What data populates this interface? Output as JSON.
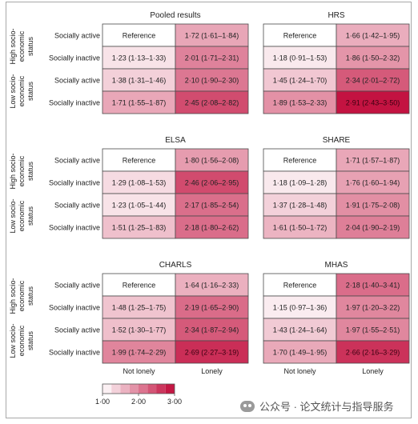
{
  "chart_data": {
    "type": "heatmap",
    "columns": [
      "Not lonely",
      "Lonely"
    ],
    "rows": [
      "Socially active",
      "Socially inactive",
      "Socially active",
      "Socially inactive"
    ],
    "row_groups": [
      "High socio-economic status",
      "Low socio-economic status"
    ],
    "row_group_lines": [
      [
        "High socio-",
        "economic",
        "status"
      ],
      [
        "Low socio-",
        "economic",
        "status"
      ]
    ],
    "colorbar": {
      "ticks": [
        "1·00",
        "2·00",
        "3·00"
      ],
      "min": 1.0,
      "max": 3.0,
      "low_color": "#ffffff",
      "high_color": "#c00838"
    },
    "panels": [
      {
        "title": "Pooled results",
        "cells": [
          [
            null,
            1.72
          ],
          [
            1.23,
            2.01
          ],
          [
            1.38,
            2.1
          ],
          [
            1.71,
            2.45
          ]
        ],
        "labels": [
          [
            "Reference",
            "1·72 (1·61–1·84)"
          ],
          [
            "1·23 (1·13–1·33)",
            "2·01 (1·71–2·31)"
          ],
          [
            "1·38 (1·31–1·46)",
            "2·10 (1·90–2·30)"
          ],
          [
            "1·71 (1·55–1·87)",
            "2·45 (2·08–2·82)"
          ]
        ]
      },
      {
        "title": "HRS",
        "cells": [
          [
            null,
            1.66
          ],
          [
            1.18,
            1.86
          ],
          [
            1.45,
            2.34
          ],
          [
            1.89,
            2.91
          ]
        ],
        "labels": [
          [
            "Reference",
            "1·66 (1·42–1·95)"
          ],
          [
            "1·18 (0·91–1·53)",
            "1·86 (1·50–2·32)"
          ],
          [
            "1·45 (1·24–1·70)",
            "2·34 (2·01–2·72)"
          ],
          [
            "1·89 (1·53–2·33)",
            "2·91 (2·43–3·50)"
          ]
        ]
      },
      {
        "title": "ELSA",
        "cells": [
          [
            null,
            1.8
          ],
          [
            1.29,
            2.46
          ],
          [
            1.23,
            2.17
          ],
          [
            1.51,
            2.18
          ]
        ],
        "labels": [
          [
            "Reference",
            "1·80 (1·56–2·08)"
          ],
          [
            "1·29 (1·08–1·53)",
            "2·46 (2·06–2·95)"
          ],
          [
            "1·23 (1·05–1·44)",
            "2·17 (1·85–2·54)"
          ],
          [
            "1·51 (1·25–1·83)",
            "2·18 (1·80–2·62)"
          ]
        ]
      },
      {
        "title": "SHARE",
        "cells": [
          [
            null,
            1.71
          ],
          [
            1.18,
            1.76
          ],
          [
            1.37,
            1.91
          ],
          [
            1.61,
            2.04
          ]
        ],
        "labels": [
          [
            "Reference",
            "1·71 (1·57–1·87)"
          ],
          [
            "1·18 (1·09–1·28)",
            "1·76 (1·60–1·94)"
          ],
          [
            "1·37 (1·28–1·48)",
            "1·91 (1·75–2·08)"
          ],
          [
            "1·61 (1·50–1·72)",
            "2·04 (1·90–2·19)"
          ]
        ]
      },
      {
        "title": "CHARLS",
        "cells": [
          [
            null,
            1.64
          ],
          [
            1.48,
            2.19
          ],
          [
            1.52,
            2.34
          ],
          [
            1.99,
            2.69
          ]
        ],
        "labels": [
          [
            "Reference",
            "1·64 (1·16–2·33)"
          ],
          [
            "1·48 (1·25–1·75)",
            "2·19 (1·65–2·90)"
          ],
          [
            "1·52 (1·30–1·77)",
            "2·34 (1·87–2·94)"
          ],
          [
            "1·99 (1·74–2·29)",
            "2·69 (2·27–3·19)"
          ]
        ]
      },
      {
        "title": "MHAS",
        "cells": [
          [
            null,
            2.18
          ],
          [
            1.15,
            1.97
          ],
          [
            1.43,
            1.97
          ],
          [
            1.7,
            2.66
          ]
        ],
        "labels": [
          [
            "Reference",
            "2·18 (1·40–3·41)"
          ],
          [
            "1·15 (0·97–1·36)",
            "1·97 (1·20–3·22)"
          ],
          [
            "1·43 (1·24–1·64)",
            "1·97 (1·55–2·51)"
          ],
          [
            "1·70 (1·49–1·95)",
            "2·66 (2·16–3·29)"
          ]
        ]
      }
    ]
  },
  "watermark": {
    "text": "公众号 · 论文统计与指导服务",
    "icon": "wechat-icon"
  }
}
